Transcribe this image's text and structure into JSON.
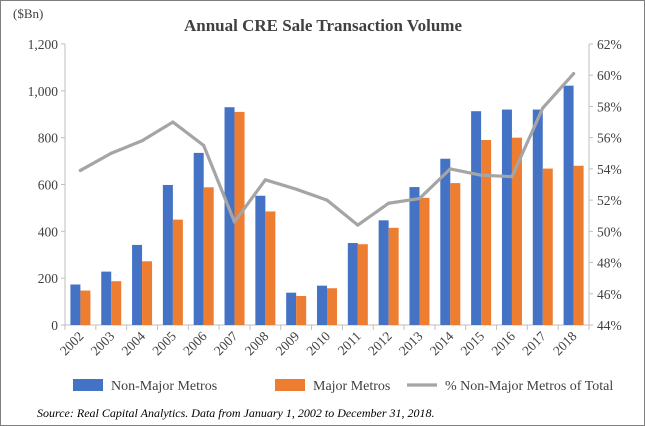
{
  "chart_data": {
    "type": "bar",
    "title": "Annual CRE Sale Transaction Volume",
    "ylabel": "($Bn)",
    "categories": [
      "2002",
      "2003",
      "2004",
      "2005",
      "2006",
      "2007",
      "2008",
      "2009",
      "2010",
      "2011",
      "2012",
      "2013",
      "2014",
      "2015",
      "2016",
      "2017",
      "2018"
    ],
    "series": [
      {
        "name": "Non-Major Metros",
        "kind": "bar",
        "axis": "left",
        "color": "#4472C4",
        "values": [
          173,
          228,
          342,
          598,
          735,
          930,
          552,
          138,
          168,
          350,
          447,
          589,
          710,
          913,
          920,
          920,
          1022
        ]
      },
      {
        "name": "Major Metros",
        "kind": "bar",
        "axis": "left",
        "color": "#ED7D31",
        "values": [
          147,
          187,
          272,
          450,
          588,
          910,
          485,
          124,
          157,
          345,
          415,
          543,
          606,
          790,
          800,
          668,
          680
        ]
      },
      {
        "name": "% Non-Major Metros of Total",
        "kind": "line",
        "axis": "right",
        "color": "#A5A5A5",
        "values": [
          53.9,
          55.0,
          55.8,
          57.0,
          55.5,
          50.6,
          53.3,
          52.7,
          52.0,
          50.4,
          51.8,
          52.1,
          54.0,
          53.6,
          53.5,
          57.9,
          60.1
        ]
      }
    ],
    "ylim": [
      0,
      1200
    ],
    "yticks": [
      0,
      200,
      400,
      600,
      800,
      1000,
      1200
    ],
    "ytick_labels": [
      "0",
      "200",
      "400",
      "600",
      "800",
      "1,000",
      "1,200"
    ],
    "y2lim": [
      44,
      62
    ],
    "y2ticks": [
      44,
      46,
      48,
      50,
      52,
      54,
      56,
      58,
      60,
      62
    ],
    "y2tick_labels": [
      "44%",
      "46%",
      "48%",
      "50%",
      "52%",
      "54%",
      "56%",
      "58%",
      "60%",
      "62%"
    ],
    "grid": false,
    "legend_position": "bottom"
  },
  "source_note": "Source: Real Capital Analytics. Data from January 1, 2002 to December 31, 2018."
}
